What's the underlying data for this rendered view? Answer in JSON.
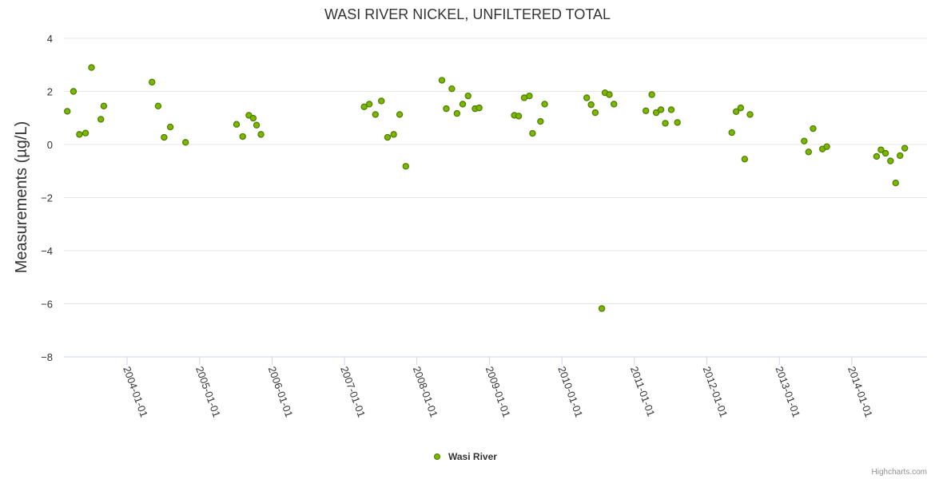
{
  "chart_data": {
    "type": "scatter",
    "title": "WASI RIVER NICKEL, UNFILTERED TOTAL",
    "ylabel": "Measurements (µg/L)",
    "xlabel": "",
    "ylim": [
      -8,
      4
    ],
    "yticks": [
      4,
      2,
      0,
      -2,
      -4,
      -6,
      -8
    ],
    "yticklabels": [
      "4",
      "2",
      "0",
      "−2",
      "−4",
      "−6",
      "−8"
    ],
    "xrange": [
      "2003-02-17",
      "2015-01-15"
    ],
    "xticks": [
      "2004-01-01",
      "2005-01-01",
      "2006-01-01",
      "2007-01-01",
      "2008-01-01",
      "2009-01-01",
      "2010-01-01",
      "2011-01-01",
      "2012-01-01",
      "2013-01-01",
      "2014-01-01"
    ],
    "grid": true,
    "legend": "bottom-center",
    "series": [
      {
        "name": "Wasi River",
        "color": "#7cb5ec",
        "marker_fill": "#7ab800",
        "marker_stroke": "#4e7a00",
        "points": [
          {
            "x": "2003-03-06",
            "y": 1.25
          },
          {
            "x": "2003-04-06",
            "y": 2.0
          },
          {
            "x": "2003-05-06",
            "y": 0.38
          },
          {
            "x": "2003-06-06",
            "y": 0.43
          },
          {
            "x": "2003-07-06",
            "y": 2.9
          },
          {
            "x": "2003-08-22",
            "y": 0.95
          },
          {
            "x": "2003-09-06",
            "y": 1.45
          },
          {
            "x": "2004-05-06",
            "y": 2.35
          },
          {
            "x": "2004-06-06",
            "y": 1.45
          },
          {
            "x": "2004-07-06",
            "y": 0.27
          },
          {
            "x": "2004-08-06",
            "y": 0.66
          },
          {
            "x": "2004-10-22",
            "y": 0.08
          },
          {
            "x": "2005-07-06",
            "y": 0.76
          },
          {
            "x": "2005-08-06",
            "y": 0.3
          },
          {
            "x": "2005-09-06",
            "y": 1.1
          },
          {
            "x": "2005-09-28",
            "y": 0.99
          },
          {
            "x": "2005-10-15",
            "y": 0.73
          },
          {
            "x": "2005-11-06",
            "y": 0.38
          },
          {
            "x": "2007-04-10",
            "y": 1.42
          },
          {
            "x": "2007-05-06",
            "y": 1.52
          },
          {
            "x": "2007-06-06",
            "y": 1.13
          },
          {
            "x": "2007-07-06",
            "y": 1.64
          },
          {
            "x": "2007-08-06",
            "y": 0.27
          },
          {
            "x": "2007-09-06",
            "y": 0.38
          },
          {
            "x": "2007-10-06",
            "y": 1.13
          },
          {
            "x": "2007-11-06",
            "y": -0.82
          },
          {
            "x": "2008-05-06",
            "y": 2.42
          },
          {
            "x": "2008-05-28",
            "y": 1.35
          },
          {
            "x": "2008-06-25",
            "y": 2.1
          },
          {
            "x": "2008-07-21",
            "y": 1.17
          },
          {
            "x": "2008-08-19",
            "y": 1.52
          },
          {
            "x": "2008-09-15",
            "y": 1.83
          },
          {
            "x": "2008-10-20",
            "y": 1.35
          },
          {
            "x": "2008-11-10",
            "y": 1.38
          },
          {
            "x": "2009-05-06",
            "y": 1.1
          },
          {
            "x": "2009-05-28",
            "y": 1.07
          },
          {
            "x": "2009-06-25",
            "y": 1.76
          },
          {
            "x": "2009-07-21",
            "y": 1.83
          },
          {
            "x": "2009-08-06",
            "y": 0.42
          },
          {
            "x": "2009-09-15",
            "y": 0.87
          },
          {
            "x": "2009-10-06",
            "y": 1.52
          },
          {
            "x": "2010-05-06",
            "y": 1.76
          },
          {
            "x": "2010-05-28",
            "y": 1.5
          },
          {
            "x": "2010-06-18",
            "y": 1.2
          },
          {
            "x": "2010-07-21",
            "y": -6.18
          },
          {
            "x": "2010-08-06",
            "y": 1.95
          },
          {
            "x": "2010-08-28",
            "y": 1.88
          },
          {
            "x": "2010-09-20",
            "y": 1.52
          },
          {
            "x": "2011-02-28",
            "y": 1.27
          },
          {
            "x": "2011-03-30",
            "y": 1.88
          },
          {
            "x": "2011-04-21",
            "y": 1.2
          },
          {
            "x": "2011-05-15",
            "y": 1.31
          },
          {
            "x": "2011-06-06",
            "y": 0.8
          },
          {
            "x": "2011-07-06",
            "y": 1.31
          },
          {
            "x": "2011-08-06",
            "y": 0.83
          },
          {
            "x": "2012-05-06",
            "y": 0.45
          },
          {
            "x": "2012-05-28",
            "y": 1.24
          },
          {
            "x": "2012-06-20",
            "y": 1.38
          },
          {
            "x": "2012-07-10",
            "y": -0.55
          },
          {
            "x": "2012-08-06",
            "y": 1.13
          },
          {
            "x": "2013-05-06",
            "y": 0.13
          },
          {
            "x": "2013-05-28",
            "y": -0.28
          },
          {
            "x": "2013-06-20",
            "y": 0.6
          },
          {
            "x": "2013-08-06",
            "y": -0.17
          },
          {
            "x": "2013-08-28",
            "y": -0.08
          },
          {
            "x": "2014-05-06",
            "y": -0.45
          },
          {
            "x": "2014-05-28",
            "y": -0.2
          },
          {
            "x": "2014-06-20",
            "y": -0.33
          },
          {
            "x": "2014-07-15",
            "y": -0.62
          },
          {
            "x": "2014-08-10",
            "y": -1.45
          },
          {
            "x": "2014-09-01",
            "y": -0.42
          },
          {
            "x": "2014-09-25",
            "y": -0.14
          }
        ]
      }
    ],
    "credits": "Highcharts.com"
  }
}
